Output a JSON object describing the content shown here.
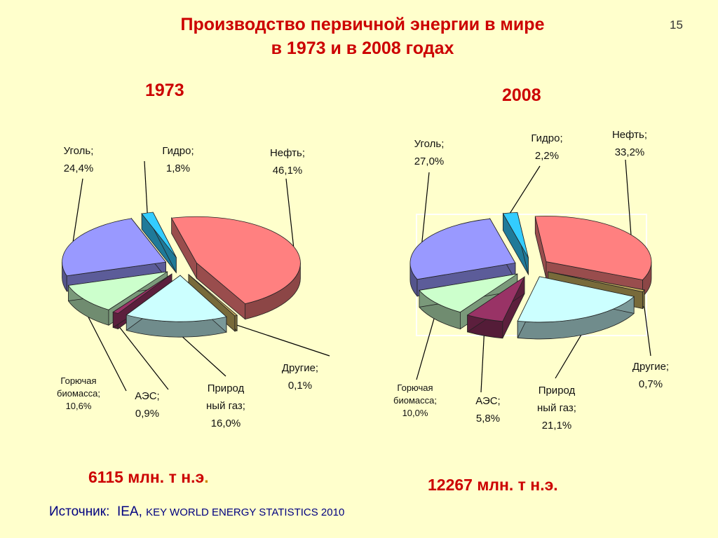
{
  "slide": {
    "title_line1": "Производство первичной энергии в мире",
    "title_line2": "в 1973 и в 2008 годах",
    "page_number": "15",
    "source_label": "Источник:",
    "source_org": "IEA,",
    "source_pub": "KEY WORLD ENERGY STATISTICS 2010"
  },
  "chart_data": [
    {
      "type": "pie",
      "year_label": "1973",
      "total_label": "6115 млн. т н.э",
      "total_suffix": ".",
      "slices": [
        {
          "name": "Нефть",
          "value": 46.1,
          "label_name": "Нефть;",
          "label_value": "46,1%",
          "color": "#ff8080"
        },
        {
          "name": "Другие",
          "value": 0.1,
          "label_name": "Другие;",
          "label_value": "0,1%",
          "color": "#c8b060"
        },
        {
          "name": "Природный газ",
          "value": 16.0,
          "label_name1": "Природ",
          "label_name2": "ный газ;",
          "label_value": "16,0%",
          "color": "#ccffff"
        },
        {
          "name": "АЭС",
          "value": 0.9,
          "label_name": "АЭС;",
          "label_value": "0,9%",
          "color": "#993366"
        },
        {
          "name": "Горючая биомасса",
          "value": 10.6,
          "label_name1": "Горючая",
          "label_name2": "биомасса;",
          "label_value": "10,6%",
          "color": "#ccffcc"
        },
        {
          "name": "Уголь",
          "value": 24.4,
          "label_name": "Уголь;",
          "label_value": "24,4%",
          "color": "#9999ff"
        },
        {
          "name": "Гидро",
          "value": 1.8,
          "label_name": "Гидро;",
          "label_value": "1,8%",
          "color": "#33ccff"
        }
      ]
    },
    {
      "type": "pie",
      "year_label": "2008",
      "total_label": "12267 млн. т н.э.",
      "slices": [
        {
          "name": "Нефть",
          "value": 33.2,
          "label_name": "Нефть;",
          "label_value": "33,2%",
          "color": "#ff8080"
        },
        {
          "name": "Другие",
          "value": 0.7,
          "label_name": "Другие;",
          "label_value": "0,7%",
          "color": "#c8b060"
        },
        {
          "name": "Природный газ",
          "value": 21.1,
          "label_name1": "Природ",
          "label_name2": "ный газ;",
          "label_value": "21,1%",
          "color": "#ccffff"
        },
        {
          "name": "АЭС",
          "value": 5.8,
          "label_name": "АЭС;",
          "label_value": "5,8%",
          "color": "#993366"
        },
        {
          "name": "Горючая биомасса",
          "value": 10.0,
          "label_name1": "Горючая",
          "label_name2": "биомасса;",
          "label_value": "10,0%",
          "color": "#ccffcc"
        },
        {
          "name": "Уголь",
          "value": 27.0,
          "label_name": "Уголь;",
          "label_value": "27,0%",
          "color": "#9999ff"
        },
        {
          "name": "Гидро",
          "value": 2.2,
          "label_name": "Гидро;",
          "label_value": "2,2%",
          "color": "#33ccff"
        }
      ]
    }
  ]
}
